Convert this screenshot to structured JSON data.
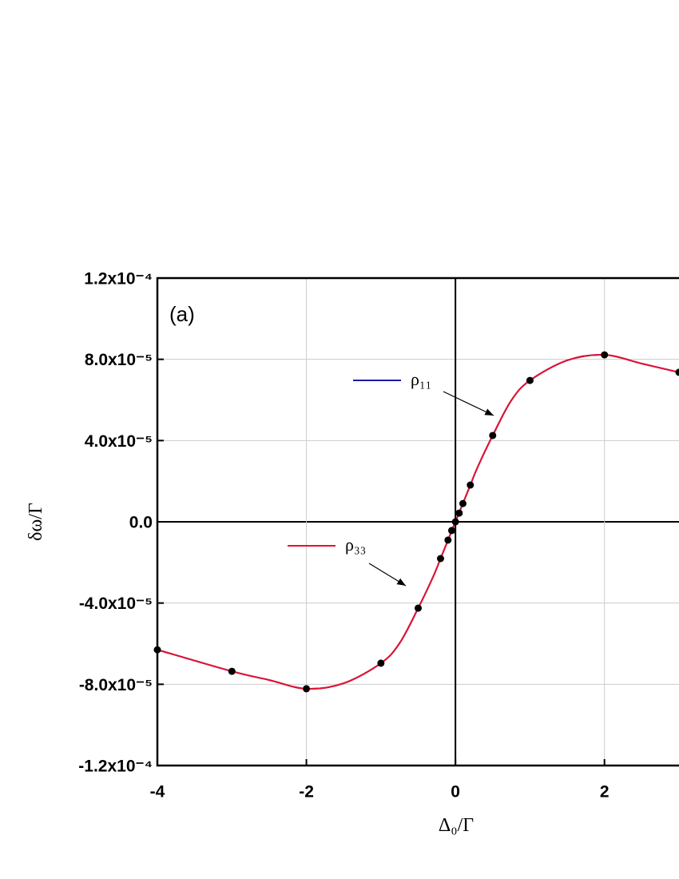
{
  "chart_data": {
    "type": "line",
    "panel_label": "(a)",
    "x_label": "Δ₀/Γ",
    "y_label": "δω/Γ",
    "xlim": [
      -4,
      3
    ],
    "ylim": [
      -0.00012,
      0.00012
    ],
    "xticks": [
      -4,
      -2,
      0,
      2
    ],
    "yticks": [
      {
        "value": -0.00012,
        "label": "-1.2x10⁻⁴"
      },
      {
        "value": -8e-05,
        "label": "-8.0x10⁻⁵"
      },
      {
        "value": -4e-05,
        "label": "-4.0x10⁻⁵"
      },
      {
        "value": 0,
        "label": "0.0"
      },
      {
        "value": 4e-05,
        "label": "4.0x10⁻⁵"
      },
      {
        "value": 8e-05,
        "label": "8.0x10⁻⁵"
      },
      {
        "value": 0.00012,
        "label": "1.2x10⁻⁴"
      }
    ],
    "grid": true,
    "x": [
      -4,
      -3,
      -2.5,
      -2,
      -1.5,
      -1,
      -0.75,
      -0.5,
      -0.3,
      -0.2,
      -0.1,
      0,
      0.1,
      0.2,
      0.3,
      0.5,
      0.75,
      1,
      1.5,
      2,
      2.5,
      3
    ],
    "series": [
      {
        "name": "ρ₁₁",
        "color": "#1a1aa8",
        "values": [
          -6.3e-05,
          -7.36e-05,
          -7.79e-05,
          -8.22e-05,
          -7.95e-05,
          -6.96e-05,
          -5.98e-05,
          -4.25e-05,
          -2.71e-05,
          -1.81e-05,
          -9e-06,
          0,
          9e-06,
          1.81e-05,
          2.71e-05,
          4.25e-05,
          5.98e-05,
          6.96e-05,
          7.95e-05,
          8.22e-05,
          7.79e-05,
          7.36e-05
        ]
      },
      {
        "name": "ρ₃₃",
        "color": "#e8102c",
        "values": [
          -6.3e-05,
          -7.36e-05,
          -7.79e-05,
          -8.22e-05,
          -7.95e-05,
          -6.96e-05,
          -5.98e-05,
          -4.25e-05,
          -2.71e-05,
          -1.81e-05,
          -9e-06,
          0,
          9e-06,
          1.81e-05,
          2.71e-05,
          4.25e-05,
          5.98e-05,
          6.96e-05,
          7.95e-05,
          8.22e-05,
          7.79e-05,
          7.36e-05
        ]
      }
    ],
    "points": {
      "color": "#000000",
      "x": [
        -4,
        -3,
        -2,
        -1,
        -0.5,
        -0.2,
        -0.1,
        -0.05,
        0,
        0.05,
        0.1,
        0.2,
        0.5,
        1,
        2,
        3
      ],
      "values": [
        -6.3e-05,
        -7.36e-05,
        -8.22e-05,
        -6.96e-05,
        -4.25e-05,
        -1.81e-05,
        -9e-06,
        -4.3e-06,
        0,
        4.3e-06,
        9e-06,
        1.81e-05,
        4.25e-05,
        6.96e-05,
        8.22e-05,
        7.36e-05
      ]
    }
  }
}
